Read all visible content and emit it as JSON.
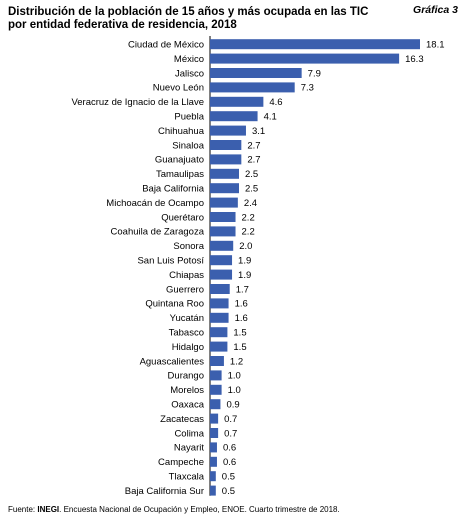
{
  "header": {
    "title_line1": "Distribución de la población de 15 años y más ocupada en las TIC",
    "title_line2": "por entidad federativa de residencia, 2018",
    "badge": "Gráfica 3"
  },
  "footer": {
    "prefix": "Fuente: ",
    "org": "INEGI",
    "rest": ". Encuesta Nacional de Ocupación y Empleo, ENOE. Cuarto trimestre de 2018."
  },
  "colors": {
    "bar": "#3b5fae"
  },
  "chart_data": {
    "type": "bar",
    "orientation": "horizontal",
    "title": "Distribución de la población de 15 años y más ocupada en las TIC por entidad federativa de residencia, 2018",
    "xlabel": "",
    "ylabel": "",
    "xlim": [
      0,
      18.1
    ],
    "grid": false,
    "categories": [
      "Ciudad de México",
      "México",
      "Jalisco",
      "Nuevo León",
      "Veracruz de Ignacio de la Llave",
      "Puebla",
      "Chihuahua",
      "Sinaloa",
      "Guanajuato",
      "Tamaulipas",
      "Baja California",
      "Michoacán de Ocampo",
      "Querétaro",
      "Coahuila de Zaragoza",
      "Sonora",
      "San Luis Potosí",
      "Chiapas",
      "Guerrero",
      "Quintana Roo",
      "Yucatán",
      "Tabasco",
      "Hidalgo",
      "Aguascalientes",
      "Durango",
      "Morelos",
      "Oaxaca",
      "Zacatecas",
      "Colima",
      "Nayarit",
      "Campeche",
      "Tlaxcala",
      "Baja California Sur"
    ],
    "values": [
      18.1,
      16.3,
      7.9,
      7.3,
      4.6,
      4.1,
      3.1,
      2.7,
      2.7,
      2.5,
      2.5,
      2.4,
      2.2,
      2.2,
      2.0,
      1.9,
      1.9,
      1.7,
      1.6,
      1.6,
      1.5,
      1.5,
      1.2,
      1.0,
      1.0,
      0.9,
      0.7,
      0.7,
      0.6,
      0.6,
      0.5,
      0.5
    ],
    "value_labels": [
      "18.1",
      "16.3",
      "7.9",
      "7.3",
      "4.6",
      "4.1",
      "3.1",
      "2.7",
      "2.7",
      "2.5",
      "2.5",
      "2.4",
      "2.2",
      "2.2",
      "2.0",
      "1.9",
      "1.9",
      "1.7",
      "1.6",
      "1.6",
      "1.5",
      "1.5",
      "1.2",
      "1.0",
      "1.0",
      "0.9",
      "0.7",
      "0.7",
      "0.6",
      "0.6",
      "0.5",
      "0.5"
    ]
  }
}
